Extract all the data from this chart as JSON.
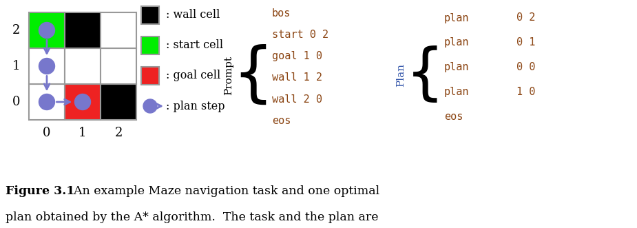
{
  "fig_width": 9.25,
  "fig_height": 3.31,
  "dpi": 100,
  "wall_color": "#000000",
  "start_color": "#00ee00",
  "goal_color": "#ee2222",
  "grid_bg": "#ffffff",
  "grid_border": "#999999",
  "circle_color": "#7777cc",
  "mono_color": "#8B4513",
  "plan_label_color": "#3355aa",
  "prompt_text": [
    "bos",
    "start 0 2",
    "goal 1 0",
    "wall 1 2",
    "wall 2 0",
    "eos"
  ],
  "plan_text_col1": [
    "plan",
    "plan",
    "plan",
    "plan",
    "eos"
  ],
  "plan_text_col2": [
    "0 2",
    "0 1",
    "0 0",
    "1 0",
    ""
  ],
  "prompt_label": "Prompt",
  "plan_label": "Plan",
  "legend_items": [
    {
      "color": "#000000",
      "label": ": wall cell"
    },
    {
      "color": "#00ee00",
      "label": ": start cell"
    },
    {
      "color": "#ee2222",
      "label": ": goal cell"
    }
  ],
  "caption_bold": "Figure 3.1",
  "caption_rest": "  An example Maze navigation task and one optimal plan obtained by the A* algorithm.  The task and the plan are expressed as a prompt token sequence and a plan token sequence."
}
